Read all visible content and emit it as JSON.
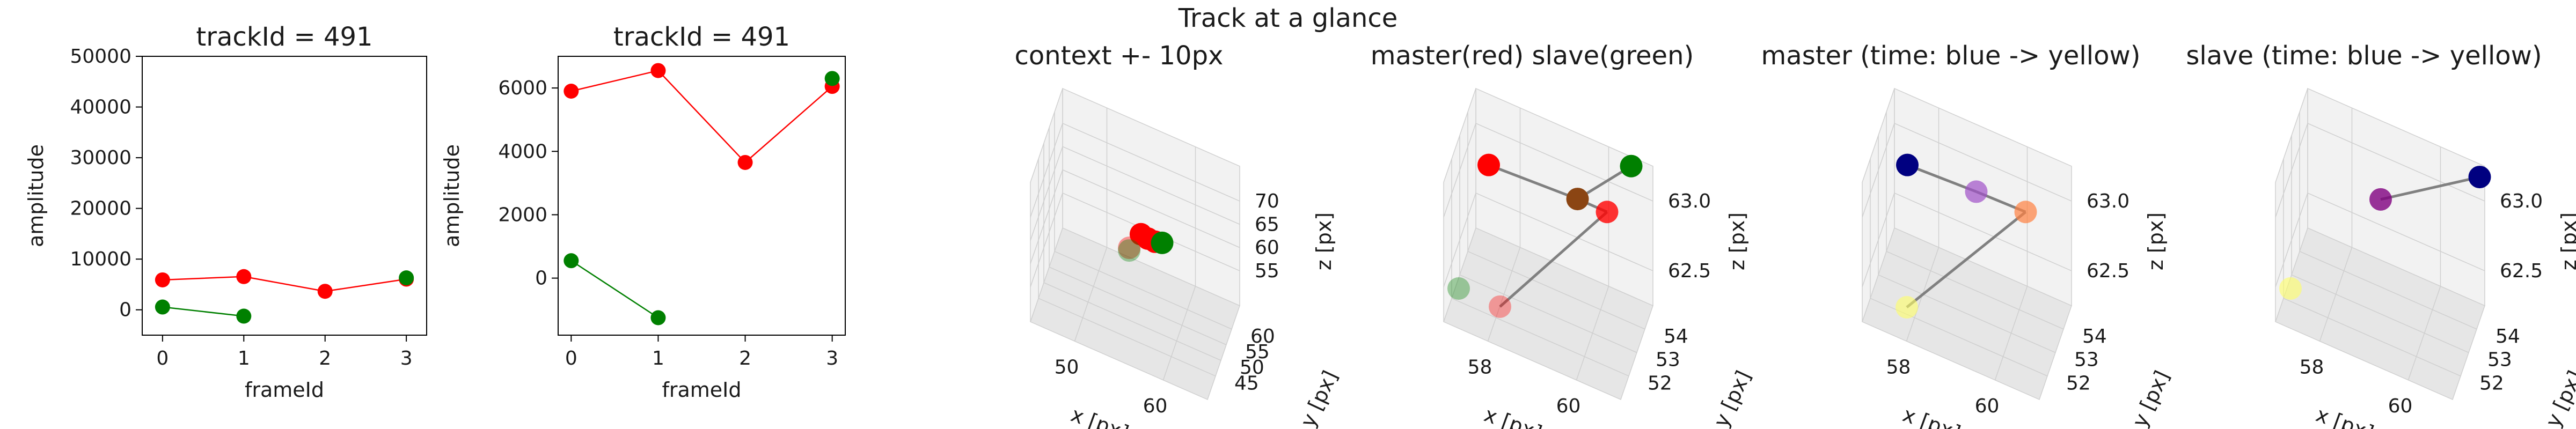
{
  "figure": {
    "suptitle": "Track at a glance"
  },
  "colors": {
    "master": "#ff0000",
    "slave": "#008000",
    "connector": "#808080",
    "pane": "#f2f2f2",
    "pane_dark": "#e6e6e6",
    "time_start": "#000080",
    "time_end": "#ffff66"
  },
  "chart_data": [
    {
      "type": "line",
      "title": "trackId = 491",
      "xlabel": "frameId",
      "ylabel": "amplitude",
      "xlim": [
        -0.25,
        3.25
      ],
      "ylim": [
        -5000,
        50000
      ],
      "xticks": [
        0,
        1,
        2,
        3
      ],
      "yticks": [
        0,
        10000,
        20000,
        30000,
        40000,
        50000
      ],
      "series": [
        {
          "color": "#ff0000",
          "x": [
            0,
            1,
            2,
            3
          ],
          "y": [
            5900,
            6550,
            3650,
            6050
          ]
        },
        {
          "color": "#008000",
          "x": [
            0,
            1
          ],
          "y": [
            550,
            -1250
          ]
        },
        {
          "color": "#008000",
          "x": [
            3
          ],
          "y": [
            6300
          ]
        }
      ]
    },
    {
      "type": "line",
      "title": "trackId = 491",
      "xlabel": "frameId",
      "ylabel": "amplitude",
      "xlim": [
        -0.15,
        3.15
      ],
      "ylim": [
        -1800,
        7000
      ],
      "xticks": [
        0,
        1,
        2,
        3
      ],
      "yticks": [
        0,
        2000,
        4000,
        6000
      ],
      "series": [
        {
          "color": "#ff0000",
          "x": [
            0,
            1,
            2,
            3
          ],
          "y": [
            5900,
            6550,
            3650,
            6050
          ]
        },
        {
          "color": "#008000",
          "x": [
            0,
            1
          ],
          "y": [
            550,
            -1250
          ]
        },
        {
          "color": "#008000",
          "x": [
            3
          ],
          "y": [
            6300
          ]
        }
      ]
    },
    {
      "type": "scatter",
      "title": "context +- 10px",
      "xlabel": "x [px]",
      "ylabel": "y [px]",
      "zlabel": "z [px]",
      "xticks": [
        "50",
        "60"
      ],
      "yticks": [
        "45",
        "50",
        "55",
        "60"
      ],
      "zticks": [
        "55",
        "60",
        "65",
        "70"
      ],
      "xlim": [
        45,
        70
      ],
      "ylim": [
        42,
        63
      ],
      "zlim": [
        52,
        73
      ],
      "points": [
        {
          "x": 57,
          "y": 51,
          "z": 62.7,
          "color": "#ff0000",
          "alpha": 0.4,
          "size": 13
        },
        {
          "x": 58,
          "y": 54,
          "z": 63.2,
          "color": "#ff0000",
          "alpha": 1,
          "size": 13
        },
        {
          "x": 59,
          "y": 54,
          "z": 63.0,
          "color": "#ff0000",
          "alpha": 1,
          "size": 13
        },
        {
          "x": 60,
          "y": 54,
          "z": 63.0,
          "color": "#ff0000",
          "alpha": 1,
          "size": 13
        },
        {
          "x": 57,
          "y": 51,
          "z": 62.3,
          "color": "#008000",
          "alpha": 0.35,
          "size": 13
        },
        {
          "x": 61,
          "y": 54,
          "z": 63.3,
          "color": "#008000",
          "alpha": 1,
          "size": 13
        }
      ],
      "segments": [
        [
          1,
          3
        ],
        [
          2,
          5
        ]
      ]
    },
    {
      "type": "scatter",
      "title": "master(red) slave(green)",
      "xlabel": "x [px]",
      "ylabel": "y [px]",
      "zlabel": "z [px]",
      "xticks": [
        "58",
        "60"
      ],
      "yticks": [
        "52",
        "53",
        "54"
      ],
      "zticks": [
        "62.5",
        "63.0"
      ],
      "xlim": [
        56.5,
        62.5
      ],
      "ylim": [
        51.5,
        54.5
      ],
      "zlim": [
        62.15,
        63.35
      ],
      "points": [
        {
          "x": 57.3,
          "y": 53.5,
          "z": 63.05,
          "color": "#ff0000",
          "alpha": 1,
          "size": 15
        },
        {
          "x": 58.3,
          "y": 51.8,
          "z": 62.4,
          "color": "#ff0000",
          "alpha": 0.35,
          "size": 15
        },
        {
          "x": 56.9,
          "y": 51.8,
          "z": 62.4,
          "color": "#008000",
          "alpha": 0.35,
          "size": 15
        },
        {
          "x": 61.2,
          "y": 53.8,
          "z": 63.0,
          "color": "#ff0000",
          "alpha": 0.8,
          "size": 15
        },
        {
          "x": 60.2,
          "y": 53.8,
          "z": 63.0,
          "color": "#8b4513",
          "alpha": 1,
          "size": 15
        },
        {
          "x": 61.8,
          "y": 54.4,
          "z": 63.3,
          "color": "#008000",
          "alpha": 1,
          "size": 15
        }
      ],
      "segments": [
        [
          0,
          4
        ],
        [
          4,
          3
        ],
        [
          1,
          3
        ],
        [
          4,
          5
        ]
      ]
    },
    {
      "type": "scatter",
      "title": "master (time: blue -> yellow)",
      "xlabel": "x [px]",
      "ylabel": "y [px]",
      "zlabel": "z [px]",
      "xticks": [
        "58",
        "60"
      ],
      "yticks": [
        "52",
        "53",
        "54"
      ],
      "zticks": [
        "62.5",
        "63.0"
      ],
      "xlim": [
        56.5,
        62.5
      ],
      "ylim": [
        51.5,
        54.5
      ],
      "zlim": [
        62.15,
        63.35
      ],
      "points": [
        {
          "x": 57.3,
          "y": 53.5,
          "z": 63.05,
          "color": "#000080",
          "alpha": 1,
          "size": 15
        },
        {
          "x": 59.6,
          "y": 53.6,
          "z": 63.05,
          "color": "#a050c8",
          "alpha": 0.7,
          "size": 15
        },
        {
          "x": 61.2,
          "y": 53.8,
          "z": 63.0,
          "color": "#ff8040",
          "alpha": 0.7,
          "size": 15
        },
        {
          "x": 57.9,
          "y": 51.8,
          "z": 62.35,
          "color": "#ffff66",
          "alpha": 0.6,
          "size": 15
        }
      ],
      "segments": [
        [
          0,
          1
        ],
        [
          1,
          2
        ],
        [
          3,
          2
        ]
      ]
    },
    {
      "type": "scatter",
      "title": "slave (time: blue -> yellow)",
      "xlabel": "x [px]",
      "ylabel": "y [px]",
      "zlabel": "z [px]",
      "xticks": [
        "58",
        "60"
      ],
      "yticks": [
        "52",
        "53",
        "54"
      ],
      "zticks": [
        "62.5",
        "63.0"
      ],
      "xlim": [
        56.5,
        62.5
      ],
      "ylim": [
        51.5,
        54.5
      ],
      "zlim": [
        62.15,
        63.35
      ],
      "points": [
        {
          "x": 62.4,
          "y": 54.3,
          "z": 63.3,
          "color": "#000080",
          "alpha": 1,
          "size": 15
        },
        {
          "x": 59.3,
          "y": 53.6,
          "z": 62.95,
          "color": "#800080",
          "alpha": 0.8,
          "size": 15
        },
        {
          "x": 56.9,
          "y": 51.8,
          "z": 62.4,
          "color": "#ffff66",
          "alpha": 0.6,
          "size": 15
        }
      ],
      "segments": [
        [
          1,
          0
        ]
      ]
    }
  ]
}
